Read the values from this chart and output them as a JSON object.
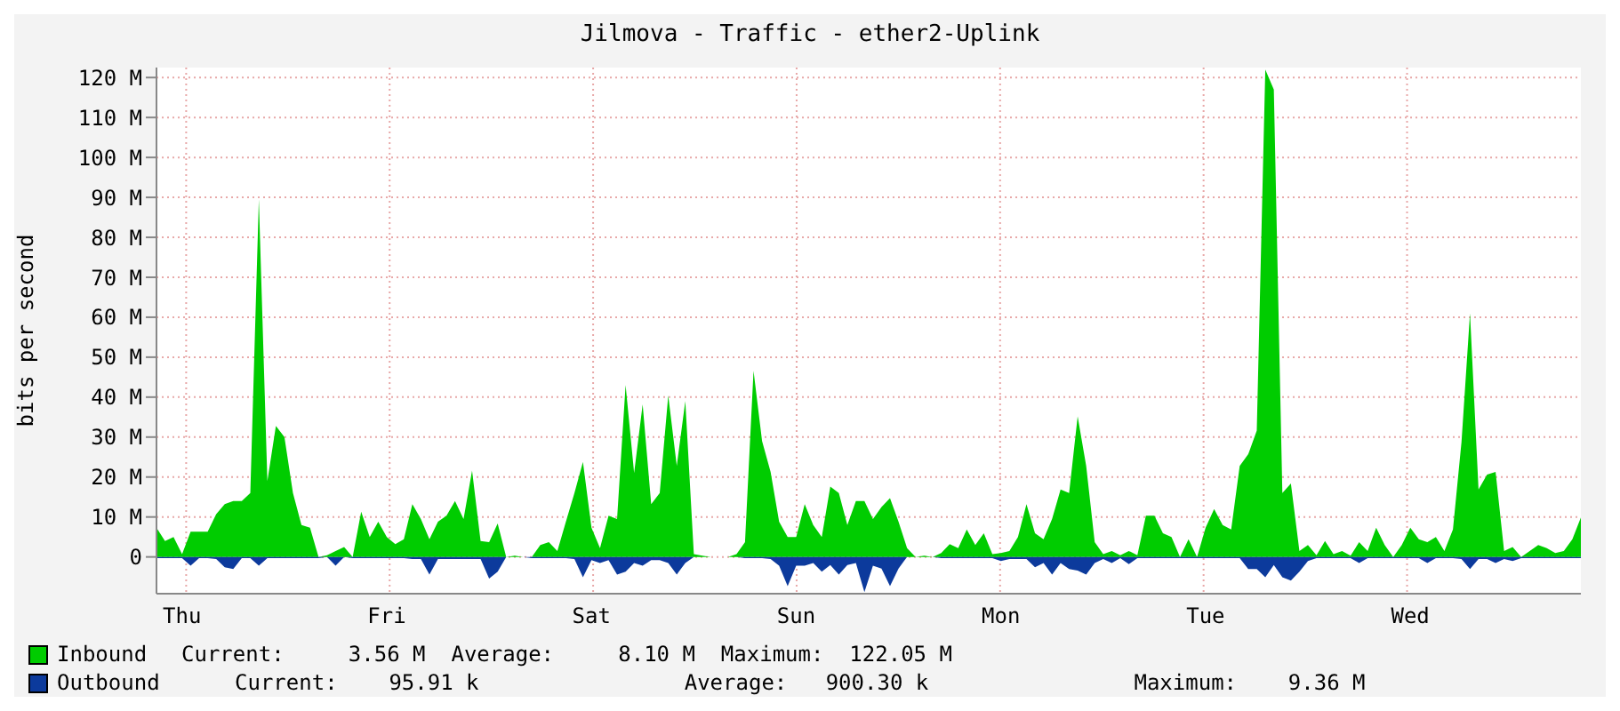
{
  "chart_data": {
    "type": "area",
    "title": "Jilmova - Traffic - ether2-Uplink",
    "ylabel": "bits per second",
    "categories": [
      null,
      null,
      null,
      "Thu",
      null,
      null,
      null,
      null,
      null,
      null,
      null,
      null,
      null,
      null,
      null,
      null,
      null,
      null,
      null,
      null,
      null,
      null,
      null,
      null,
      null,
      null,
      null,
      "Fri",
      null,
      null,
      null,
      null,
      null,
      null,
      null,
      null,
      null,
      null,
      null,
      null,
      null,
      null,
      null,
      null,
      null,
      null,
      null,
      null,
      null,
      null,
      null,
      "Sat",
      null,
      null,
      null,
      null,
      null,
      null,
      null,
      null,
      null,
      null,
      null,
      null,
      null,
      null,
      null,
      null,
      null,
      null,
      null,
      null,
      null,
      null,
      null,
      "Sun",
      null,
      null,
      null,
      null,
      null,
      null,
      null,
      null,
      null,
      null,
      null,
      null,
      null,
      null,
      null,
      null,
      null,
      null,
      null,
      null,
      null,
      null,
      null,
      "Mon",
      null,
      null,
      null,
      null,
      null,
      null,
      null,
      null,
      null,
      null,
      null,
      null,
      null,
      null,
      null,
      null,
      null,
      null,
      null,
      null,
      null,
      null,
      null,
      "Tue",
      null,
      null,
      null,
      null,
      null,
      null,
      null,
      null,
      null,
      null,
      null,
      null,
      null,
      null,
      null,
      null,
      null,
      null,
      null,
      null,
      null,
      null,
      null,
      "Wed",
      null,
      null,
      null,
      null,
      null,
      null,
      null,
      null,
      null,
      null,
      null,
      null,
      null,
      null,
      null,
      null,
      null,
      null,
      null,
      null
    ],
    "ylim": [
      -9.2,
      122.5
    ],
    "yticks": [
      0,
      {
        "value": 10,
        "label": "10 M"
      },
      {
        "value": 20,
        "label": "20 M"
      },
      {
        "value": 30,
        "label": "30 M"
      },
      {
        "value": 40,
        "label": "40 M"
      },
      {
        "value": 50,
        "label": "50 M"
      },
      {
        "value": 60,
        "label": "60 M"
      },
      {
        "value": 70,
        "label": "70 M"
      },
      {
        "value": 80,
        "label": "80 M"
      },
      {
        "value": 90,
        "label": "90 M"
      },
      {
        "value": 100,
        "label": "100 M"
      },
      {
        "value": 110,
        "label": "110 M"
      },
      {
        "value": 120,
        "label": "120 M"
      }
    ],
    "grid": true,
    "legend": "bottom",
    "series": [
      {
        "name": "Inbound",
        "color": "#00cc00",
        "values": [
          7.3,
          4,
          5,
          0.7,
          6.3,
          6.3,
          6.3,
          10.7,
          13.2,
          14,
          14,
          16,
          89.5,
          19,
          32.8,
          30,
          16,
          8,
          7.3,
          0,
          0.4,
          1.5,
          2.5,
          0,
          11.3,
          5,
          8.8,
          5,
          3.2,
          4.4,
          13.2,
          9.5,
          4.4,
          8.8,
          10.3,
          14,
          9.5,
          21.6,
          4,
          3.7,
          8.4,
          0,
          0.3,
          0,
          0,
          3,
          3.7,
          1.5,
          8.8,
          16,
          23.8,
          7.3,
          2.2,
          10.3,
          9.5,
          43,
          21,
          38.2,
          13.2,
          16,
          40.4,
          22.8,
          39,
          0.7,
          0.3,
          0,
          0,
          0,
          0.7,
          3.7,
          46.6,
          29,
          21.3,
          8.8,
          5,
          5,
          13.2,
          8,
          5,
          17.6,
          16,
          8,
          14,
          14,
          9.5,
          12.5,
          14.7,
          8.8,
          2.2,
          0,
          0.3,
          0,
          1,
          3.2,
          2.2,
          6.9,
          3,
          5.9,
          0.7,
          1,
          1.5,
          5,
          13.2,
          5.9,
          4.4,
          9.5,
          16.9,
          16,
          35.2,
          22.8,
          3.7,
          0.7,
          1.5,
          0.4,
          1.5,
          0.4,
          10.3,
          10.3,
          5.9,
          5,
          0,
          4.4,
          0,
          7.3,
          12,
          8,
          6.9,
          22.8,
          25.7,
          31.6,
          122,
          117,
          16,
          18.4,
          1.5,
          3,
          0.4,
          4,
          0.7,
          1.5,
          0.3,
          3.7,
          1.5,
          7.3,
          3,
          0,
          3,
          7.3,
          4.4,
          3.7,
          5,
          1.5,
          6.9,
          28.7,
          61,
          16.9,
          20.6,
          21.3,
          1.5,
          2.5,
          0,
          1.5,
          3,
          2.2,
          1,
          1.5,
          4.4,
          9.9
        ]
      },
      {
        "name": "Outbound",
        "color": "#0c3a9c",
        "values": [
          -0.3,
          -0.3,
          -0.3,
          -0.3,
          -2.2,
          -0.3,
          -0.3,
          -0.5,
          -2.6,
          -3,
          -0.3,
          -0.3,
          -2.2,
          -0.3,
          -0.3,
          -0.3,
          -0.3,
          -0.3,
          -0.3,
          -0.3,
          0,
          -2.2,
          0,
          -0.3,
          -0.3,
          -0.3,
          -0.3,
          -0.3,
          -0.3,
          -0.3,
          -0.5,
          -0.5,
          -4.4,
          -0.5,
          -0.5,
          -0.5,
          -0.5,
          -0.5,
          -0.5,
          -5.4,
          -3.7,
          0,
          0,
          0,
          -0.3,
          -0.3,
          -0.3,
          -0.3,
          -0.3,
          -0.5,
          -5.1,
          -0.8,
          -1.5,
          -0.8,
          -4.4,
          -3.7,
          -1.5,
          -2.2,
          -0.8,
          -0.8,
          -1.5,
          -4.4,
          -1.5,
          0,
          0,
          0,
          0,
          0,
          0,
          -0.3,
          -0.3,
          -0.3,
          -0.5,
          -2.2,
          -7.3,
          -2.2,
          -2.2,
          -1.5,
          -3.7,
          -2,
          -4.4,
          -2,
          -1.5,
          -8.8,
          -2.2,
          -2.9,
          -7.3,
          -2.9,
          0,
          0,
          0,
          0,
          -0.3,
          -0.3,
          -0.3,
          -0.3,
          -0.3,
          -0.3,
          -0.3,
          -1,
          -0.5,
          -0.5,
          -0.5,
          -2.6,
          -1.5,
          -4.4,
          -1.5,
          -3,
          -3.4,
          -4.4,
          -1.5,
          -0.5,
          -1.5,
          -0.3,
          -1.8,
          -0.3,
          -0.3,
          -0.3,
          -0.3,
          -0.3,
          -0.3,
          -0.3,
          -0.3,
          -0.3,
          -0.3,
          -0.3,
          -0.3,
          -0.3,
          -3,
          -3,
          -5.1,
          -2,
          -5.1,
          -5.9,
          -3.7,
          -1,
          -0.3,
          -0.3,
          -0.3,
          -0.3,
          -0.3,
          -1.5,
          -0.3,
          -0.3,
          -0.3,
          -0.3,
          -0.3,
          -0.3,
          -0.3,
          -1.5,
          -0.3,
          -0.3,
          -0.3,
          -0.5,
          -3,
          -0.5,
          -0.5,
          -1.5,
          -0.5,
          -1,
          -0.3,
          -0.3,
          -0.3,
          -0.3,
          -0.3,
          -0.3,
          -0.3,
          -0.3
        ]
      }
    ],
    "annotations": [
      "Current:     3.56 M  Average:     8.10 M  Maximum:  122.05 M",
      "Current:    95.91 k                Average:   900.30 k                Maximum:    9.36 M"
    ]
  }
}
